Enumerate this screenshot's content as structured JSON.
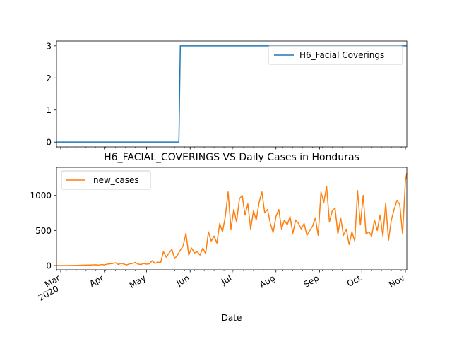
{
  "chart_data": [
    {
      "type": "line",
      "title": "",
      "xlabel": "",
      "ylabel": "",
      "x_range": [
        "2020-02-27",
        "2020-11-02"
      ],
      "ylim": [
        -0.15,
        3.15
      ],
      "yticks": [
        0,
        1,
        2,
        3
      ],
      "x_tick_labels_visible": false,
      "legend_position": "upper right",
      "series": [
        {
          "name": "H6_Facial Coverings",
          "color": "#1f77b4",
          "x": [
            "2020-02-27",
            "2020-05-24",
            "2020-05-25",
            "2020-11-02"
          ],
          "y": [
            0,
            0,
            3,
            3
          ]
        }
      ]
    },
    {
      "type": "line",
      "title": "H6_FACIAL_COVERINGS VS Daily Cases in Honduras",
      "xlabel": "Date",
      "ylabel": "",
      "x_range": [
        "2020-02-27",
        "2020-11-02"
      ],
      "ylim": [
        -60,
        1400
      ],
      "yticks": [
        0,
        500,
        1000
      ],
      "legend_position": "upper left",
      "x_ticks": [
        {
          "date": "2020-03-01",
          "label": "Mar",
          "sublabel": "2020"
        },
        {
          "date": "2020-04-01",
          "label": "Apr"
        },
        {
          "date": "2020-05-01",
          "label": "May"
        },
        {
          "date": "2020-06-01",
          "label": "Jun"
        },
        {
          "date": "2020-07-01",
          "label": "Jul"
        },
        {
          "date": "2020-08-01",
          "label": "Aug"
        },
        {
          "date": "2020-09-01",
          "label": "Sep"
        },
        {
          "date": "2020-10-01",
          "label": "Oct"
        },
        {
          "date": "2020-11-01",
          "label": "Nov"
        }
      ],
      "series": [
        {
          "name": "new_cases",
          "color": "#ff7f0e",
          "x": [
            "2020-02-27",
            "2020-03-06",
            "2020-03-11",
            "2020-03-16",
            "2020-03-21",
            "2020-03-26",
            "2020-03-28",
            "2020-03-30",
            "2020-04-01",
            "2020-04-03",
            "2020-04-05",
            "2020-04-07",
            "2020-04-09",
            "2020-04-11",
            "2020-04-13",
            "2020-04-15",
            "2020-04-17",
            "2020-04-19",
            "2020-04-21",
            "2020-04-23",
            "2020-04-25",
            "2020-04-27",
            "2020-04-29",
            "2020-05-01",
            "2020-05-03",
            "2020-05-05",
            "2020-05-07",
            "2020-05-09",
            "2020-05-11",
            "2020-05-13",
            "2020-05-15",
            "2020-05-17",
            "2020-05-19",
            "2020-05-21",
            "2020-05-23",
            "2020-05-25",
            "2020-05-27",
            "2020-05-29",
            "2020-05-31",
            "2020-06-02",
            "2020-06-04",
            "2020-06-06",
            "2020-06-08",
            "2020-06-10",
            "2020-06-12",
            "2020-06-14",
            "2020-06-16",
            "2020-06-18",
            "2020-06-20",
            "2020-06-22",
            "2020-06-24",
            "2020-06-26",
            "2020-06-28",
            "2020-06-30",
            "2020-07-02",
            "2020-07-04",
            "2020-07-06",
            "2020-07-08",
            "2020-07-10",
            "2020-07-12",
            "2020-07-14",
            "2020-07-16",
            "2020-07-18",
            "2020-07-20",
            "2020-07-22",
            "2020-07-24",
            "2020-07-26",
            "2020-07-28",
            "2020-07-30",
            "2020-08-01",
            "2020-08-03",
            "2020-08-05",
            "2020-08-07",
            "2020-08-09",
            "2020-08-11",
            "2020-08-13",
            "2020-08-15",
            "2020-08-17",
            "2020-08-19",
            "2020-08-21",
            "2020-08-23",
            "2020-08-25",
            "2020-08-27",
            "2020-08-29",
            "2020-08-31",
            "2020-09-02",
            "2020-09-04",
            "2020-09-06",
            "2020-09-08",
            "2020-09-10",
            "2020-09-12",
            "2020-09-14",
            "2020-09-16",
            "2020-09-18",
            "2020-09-20",
            "2020-09-22",
            "2020-09-24",
            "2020-09-26",
            "2020-09-28",
            "2020-09-30",
            "2020-10-02",
            "2020-10-04",
            "2020-10-06",
            "2020-10-08",
            "2020-10-10",
            "2020-10-12",
            "2020-10-14",
            "2020-10-16",
            "2020-10-18",
            "2020-10-20",
            "2020-10-22",
            "2020-10-24",
            "2020-10-26",
            "2020-10-28",
            "2020-10-30",
            "2020-11-01",
            "2020-11-02"
          ],
          "y": [
            0,
            0,
            2,
            5,
            8,
            12,
            6,
            15,
            10,
            20,
            25,
            30,
            40,
            15,
            35,
            20,
            10,
            25,
            30,
            45,
            20,
            15,
            30,
            20,
            25,
            70,
            30,
            50,
            40,
            200,
            120,
            180,
            230,
            100,
            150,
            220,
            280,
            460,
            150,
            250,
            180,
            200,
            150,
            250,
            170,
            480,
            350,
            420,
            320,
            600,
            480,
            700,
            1050,
            520,
            800,
            620,
            950,
            1000,
            720,
            880,
            520,
            780,
            650,
            900,
            1050,
            750,
            800,
            600,
            470,
            700,
            800,
            520,
            650,
            580,
            700,
            460,
            650,
            600,
            520,
            600,
            430,
            500,
            560,
            680,
            430,
            1050,
            900,
            1130,
            620,
            780,
            820,
            450,
            680,
            430,
            520,
            300,
            480,
            350,
            1070,
            580,
            1000,
            450,
            480,
            420,
            650,
            500,
            720,
            420,
            890,
            360,
            650,
            800,
            930,
            870,
            450,
            1210,
            1320
          ]
        }
      ]
    }
  ]
}
